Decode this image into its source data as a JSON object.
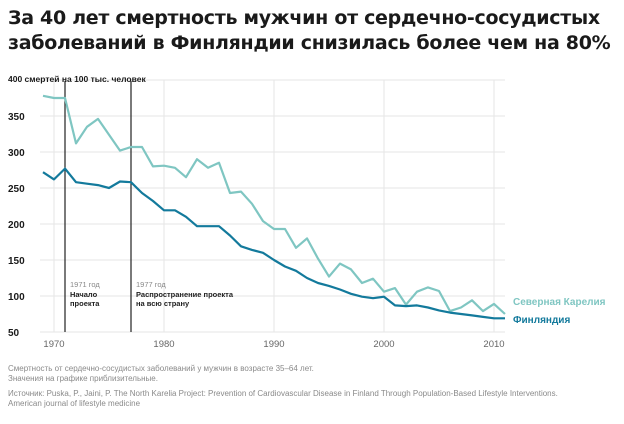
{
  "title": {
    "line1": "За 40 лет смертность мужчин от сердечно-сосудистых",
    "line2": "заболеваний в Финляндии снизилась более чем на 80%"
  },
  "notes": {
    "line1": "Смертность от сердечно-сосудистых заболеваний у мужчин в возрасте 35–64 лет.",
    "line2": "Значения на графике приблизительные.",
    "source1": "Источник: Puska, P., Jaini, P. The North Karelia Project: Prevention of Cardiovascular Disease in Finland Through Population-Based Lifestyle Interventions.",
    "source2": "American journal of lifestyle medicine"
  },
  "colors": {
    "karelia": "#7fc6c2",
    "finland": "#137a9c",
    "grid": "#e6e6e6",
    "marker": "#222222"
  },
  "chart_data": {
    "type": "line",
    "title": "За 40 лет смертность мужчин от сердечно-сосудистых заболеваний в Финляндии снизилась более чем на 80%",
    "ylabel": "400 смертей на 100 тыс. человек",
    "xlabel": "",
    "xlim": [
      1968,
      2011
    ],
    "ylim": [
      50,
      400
    ],
    "grid": true,
    "y_ticks": [
      50,
      100,
      150,
      200,
      250,
      300,
      350
    ],
    "y_top_label": "400 смертей на 100 тыс. человек",
    "x_ticks": [
      1970,
      1980,
      1990,
      2000,
      2010
    ],
    "legend_placement": "right-end-of-lines",
    "annotations": [
      {
        "x": 1971,
        "year_label": "1971 год",
        "text1": "Начало",
        "text2": "проекта"
      },
      {
        "x": 1977,
        "year_label": "1977 год",
        "text1": "Распространение проекта",
        "text2": "на всю страну"
      }
    ],
    "series": [
      {
        "name": "Северная Карелия",
        "x": [
          1969,
          1970,
          1971,
          1972,
          1973,
          1974,
          1975,
          1976,
          1977,
          1978,
          1979,
          1980,
          1981,
          1982,
          1983,
          1984,
          1985,
          1986,
          1987,
          1988,
          1989,
          1990,
          1991,
          1992,
          1993,
          1994,
          1995,
          1996,
          1997,
          1998,
          1999,
          2000,
          2001,
          2002,
          2003,
          2004,
          2005,
          2006,
          2007,
          2008,
          2009,
          2010,
          2011
        ],
        "values": [
          378,
          375,
          375,
          312,
          335,
          346,
          324,
          302,
          307,
          307,
          280,
          281,
          278,
          265,
          290,
          278,
          285,
          243,
          245,
          228,
          204,
          193,
          193,
          167,
          180,
          152,
          127,
          145,
          137,
          118,
          124,
          106,
          111,
          88,
          106,
          112,
          107,
          79,
          84,
          94,
          79,
          89,
          75
        ]
      },
      {
        "name": "Финляндия",
        "x": [
          1969,
          1970,
          1971,
          1972,
          1973,
          1974,
          1975,
          1976,
          1977,
          1978,
          1979,
          1980,
          1981,
          1982,
          1983,
          1984,
          1985,
          1986,
          1987,
          1988,
          1989,
          1990,
          1991,
          1992,
          1993,
          1994,
          1995,
          1996,
          1997,
          1998,
          1999,
          2000,
          2001,
          2002,
          2003,
          2004,
          2005,
          2006,
          2007,
          2008,
          2009,
          2010,
          2011
        ],
        "values": [
          272,
          262,
          277,
          258,
          256,
          254,
          250,
          259,
          258,
          243,
          232,
          219,
          219,
          210,
          197,
          197,
          197,
          184,
          169,
          164,
          160,
          150,
          141,
          135,
          125,
          118,
          114,
          109,
          103,
          99,
          97,
          99,
          87,
          86,
          87,
          84,
          80,
          77,
          75,
          73,
          71,
          69,
          69
        ]
      }
    ]
  }
}
